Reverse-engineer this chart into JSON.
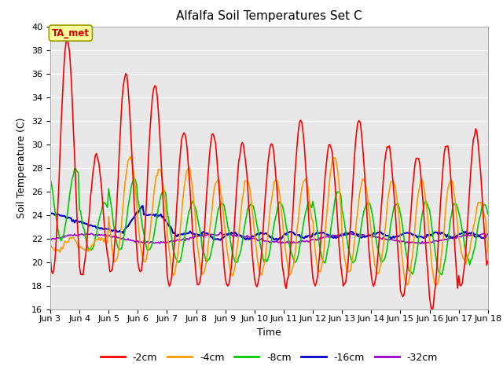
{
  "title": "Alfalfa Soil Temperatures Set C",
  "xlabel": "Time",
  "ylabel": "Soil Temperature (C)",
  "ylim": [
    16,
    40
  ],
  "yticks": [
    16,
    18,
    20,
    22,
    24,
    26,
    28,
    30,
    32,
    34,
    36,
    38,
    40
  ],
  "annotation_text": "TA_met",
  "annotation_color": "#cc0000",
  "annotation_bg": "#ffff99",
  "annotation_border": "#999900",
  "series": {
    "-2cm": {
      "color": "#ff0000",
      "lw": 1.2
    },
    "-4cm": {
      "color": "#ff9900",
      "lw": 1.2
    },
    "-8cm": {
      "color": "#00cc00",
      "lw": 1.2
    },
    "-16cm": {
      "color": "#0000cc",
      "lw": 1.5
    },
    "-32cm": {
      "color": "#9900cc",
      "lw": 1.2
    }
  },
  "background_color": "#e8e8e8",
  "x_start": 3.0,
  "x_end": 18.0,
  "x_ticks": [
    3,
    4,
    5,
    6,
    7,
    8,
    9,
    10,
    11,
    12,
    13,
    14,
    15,
    16,
    17,
    18
  ],
  "x_tick_labels": [
    "Jun 3",
    "Jun 4",
    "Jun 5",
    "Jun 6",
    "Jun 7",
    "Jun 8",
    "Jun 9",
    "Jun 10",
    "Jun 11",
    "Jun 12",
    "Jun 13",
    "Jun 14",
    "Jun 15",
    "Jun 16",
    "Jun 17",
    "Jun 18"
  ]
}
